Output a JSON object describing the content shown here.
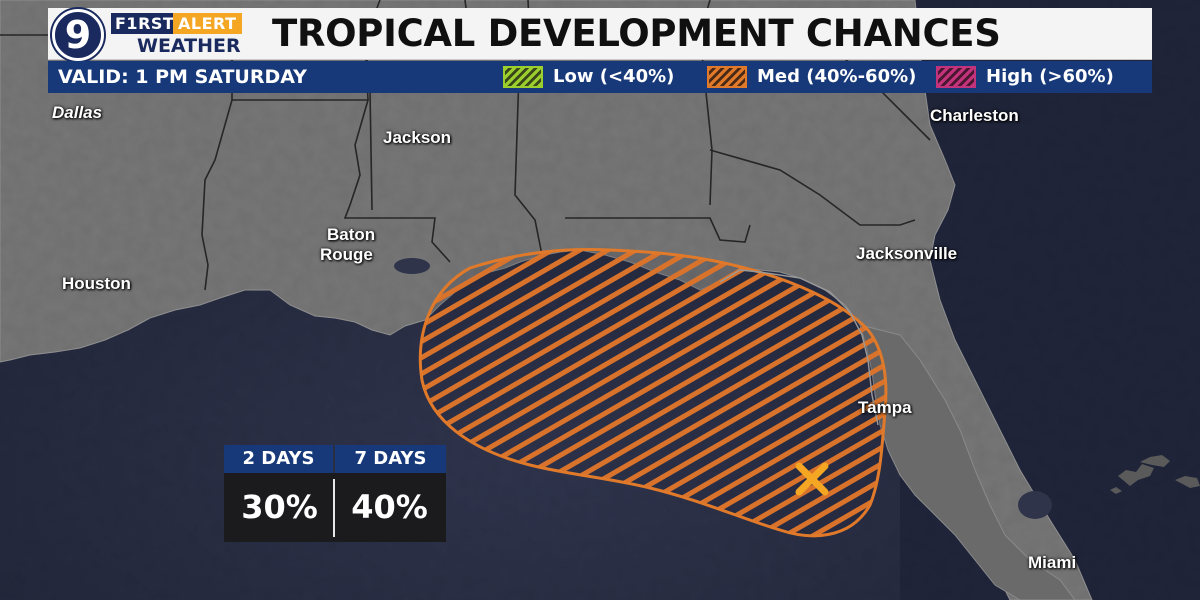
{
  "header": {
    "logo_number": "9",
    "logo_first": "F1RST",
    "logo_alert": "ALERT",
    "logo_weather": "WEATHER",
    "title": "TROPICAL DEVELOPMENT CHANCES",
    "valid": "VALID: 1 PM SATURDAY"
  },
  "legend": [
    {
      "label": "Low (<40%)",
      "color": "#9bcf2e"
    },
    {
      "label": "Med (40%-60%)",
      "color": "#e07a2a"
    },
    {
      "label": "High (>60%)",
      "color": "#c2337c"
    }
  ],
  "cities": {
    "dallas": "Dallas",
    "jackson": "Jackson",
    "charleston": "Charleston",
    "baton_rouge_1": "Baton",
    "baton_rouge_2": "Rouge",
    "jacksonville": "Jacksonville",
    "houston": "Houston",
    "tampa": "Tampa",
    "miami": "Miami"
  },
  "outlook": {
    "risk_level": "Med (40%-60%)",
    "area_color": "#e07a2a",
    "marker_color": "#f5a623"
  },
  "chances": {
    "two_day_label": "2 DAYS",
    "two_day_value": "30%",
    "seven_day_label": "7 DAYS",
    "seven_day_value": "40%"
  }
}
